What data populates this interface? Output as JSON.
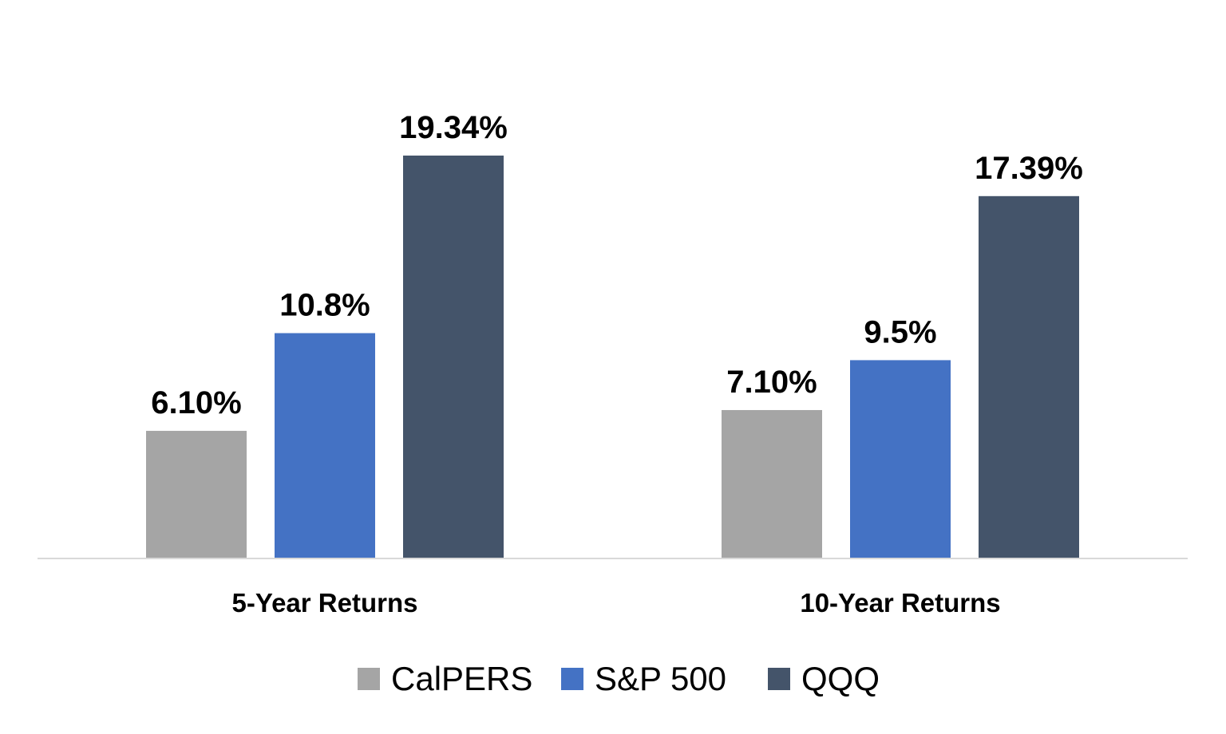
{
  "chart_data": {
    "type": "bar",
    "title": "",
    "xlabel": "",
    "ylabel": "",
    "categories": [
      "5-Year Returns",
      "10-Year Returns"
    ],
    "series": [
      {
        "name": "CalPERS",
        "values": [
          6.1,
          7.1
        ],
        "labels": [
          "6.10%",
          "7.10%"
        ],
        "color": "#a5a5a5"
      },
      {
        "name": "S&P 500",
        "values": [
          10.8,
          9.5
        ],
        "labels": [
          "10.8%",
          "9.5%"
        ],
        "color": "#4472c4"
      },
      {
        "name": "QQQ",
        "values": [
          19.34,
          17.39
        ],
        "labels": [
          "19.34%",
          "17.39%"
        ],
        "color": "#44546a"
      }
    ],
    "ylim": [
      0,
      21
    ],
    "grid": false,
    "y_axis_visible": false,
    "legend_position": "bottom",
    "axis_color": "#d9d9d9"
  }
}
